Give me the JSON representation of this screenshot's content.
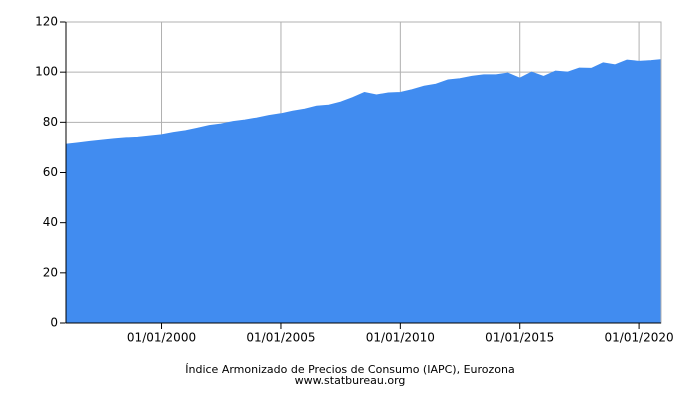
{
  "chart_data": {
    "type": "area",
    "title": "Índice Armonizado de Precios de Consumo (IAPC), Eurozona",
    "subtitle": "www.statbureau.org",
    "x": [
      "01/01/1996",
      "01/07/1996",
      "01/01/1997",
      "01/07/1997",
      "01/01/1998",
      "01/07/1998",
      "01/01/1999",
      "01/07/1999",
      "01/01/2000",
      "01/07/2000",
      "01/01/2001",
      "01/07/2001",
      "01/01/2002",
      "01/07/2002",
      "01/01/2003",
      "01/07/2003",
      "01/01/2004",
      "01/07/2004",
      "01/01/2005",
      "01/07/2005",
      "01/01/2006",
      "01/07/2006",
      "01/01/2007",
      "01/07/2007",
      "01/01/2008",
      "01/07/2008",
      "01/01/2009",
      "01/07/2009",
      "01/01/2010",
      "01/07/2010",
      "01/01/2011",
      "01/07/2011",
      "01/01/2012",
      "01/07/2012",
      "01/01/2013",
      "01/07/2013",
      "01/01/2014",
      "01/07/2014",
      "01/01/2015",
      "01/07/2015",
      "01/01/2016",
      "01/07/2016",
      "01/01/2017",
      "01/07/2017",
      "01/01/2018",
      "01/07/2018",
      "01/01/2019",
      "01/07/2019",
      "01/01/2020",
      "01/07/2020",
      "01/12/2020"
    ],
    "values": [
      71.3,
      71.8,
      72.4,
      72.9,
      73.4,
      73.8,
      74.0,
      74.5,
      75.0,
      75.9,
      76.6,
      77.6,
      78.7,
      79.3,
      80.3,
      80.9,
      81.7,
      82.7,
      83.4,
      84.4,
      85.2,
      86.4,
      86.8,
      88.0,
      89.8,
      91.9,
      90.9,
      91.7,
      91.9,
      93.0,
      94.4,
      95.2,
      96.9,
      97.4,
      98.3,
      98.9,
      98.9,
      99.6,
      97.6,
      100.0,
      98.3,
      100.4,
      100.0,
      101.6,
      101.5,
      103.7,
      102.9,
      104.8,
      104.3,
      104.6,
      105.0
    ],
    "color": "#418cf0",
    "xlim": [
      "01/01/1996",
      "01/12/2020"
    ],
    "xticks": [
      "01/01/2000",
      "01/01/2005",
      "01/01/2010",
      "01/01/2015",
      "01/01/2020"
    ],
    "ylim": [
      0,
      120
    ],
    "yticks": [
      0,
      20,
      40,
      60,
      80,
      100,
      120
    ],
    "grid": true
  }
}
